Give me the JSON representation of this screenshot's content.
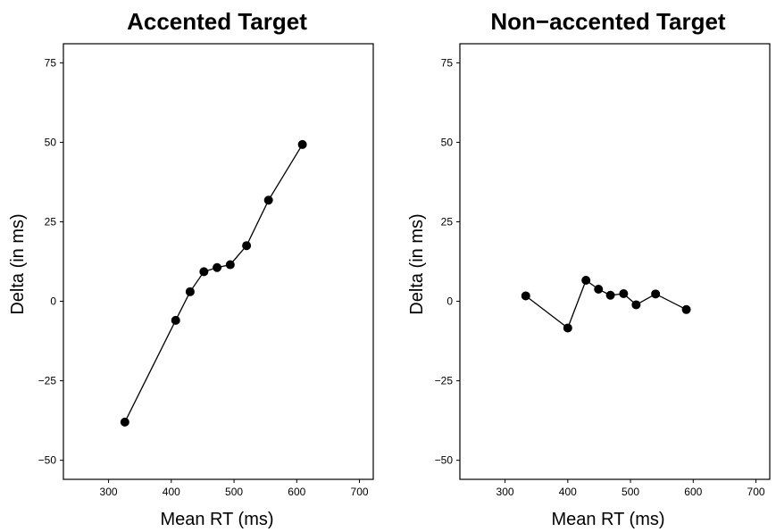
{
  "chart_data": [
    {
      "type": "line",
      "title": "Accented Target",
      "xlabel": "Mean RT (ms)",
      "ylabel": "Delta (in ms)",
      "xlim": [
        228,
        722
      ],
      "ylim": [
        -56,
        81
      ],
      "xticks": [
        300,
        400,
        500,
        600,
        700
      ],
      "yticks": [
        -50,
        -25,
        0,
        25,
        50,
        75
      ],
      "xtick_labels": [
        "300",
        "400",
        "500",
        "600",
        "700"
      ],
      "ytick_labels": [
        "−50",
        "−25",
        "0",
        "25",
        "50",
        "75"
      ],
      "grid": false,
      "series": [
        {
          "x": [
            326,
            407,
            430,
            452,
            473,
            494,
            520,
            555,
            609
          ],
          "y": [
            -38,
            -6,
            3,
            9.3,
            10.6,
            11.5,
            17.5,
            31.8,
            49.3
          ]
        }
      ]
    },
    {
      "type": "line",
      "title": "Non−accented Target",
      "xlabel": "Mean RT (ms)",
      "ylabel": "Delta (in ms)",
      "xlim": [
        228,
        722
      ],
      "ylim": [
        -56,
        81
      ],
      "xticks": [
        300,
        400,
        500,
        600,
        700
      ],
      "yticks": [
        -50,
        -25,
        0,
        25,
        50,
        75
      ],
      "xtick_labels": [
        "300",
        "400",
        "500",
        "600",
        "700"
      ],
      "ytick_labels": [
        "−50",
        "−25",
        "0",
        "25",
        "50",
        "75"
      ],
      "grid": false,
      "series": [
        {
          "x": [
            333,
            400,
            429,
            449,
            468,
            489,
            509,
            540,
            589
          ],
          "y": [
            1.7,
            -8.4,
            6.6,
            3.8,
            1.9,
            2.4,
            -1.1,
            2.3,
            -2.6
          ]
        }
      ]
    }
  ]
}
